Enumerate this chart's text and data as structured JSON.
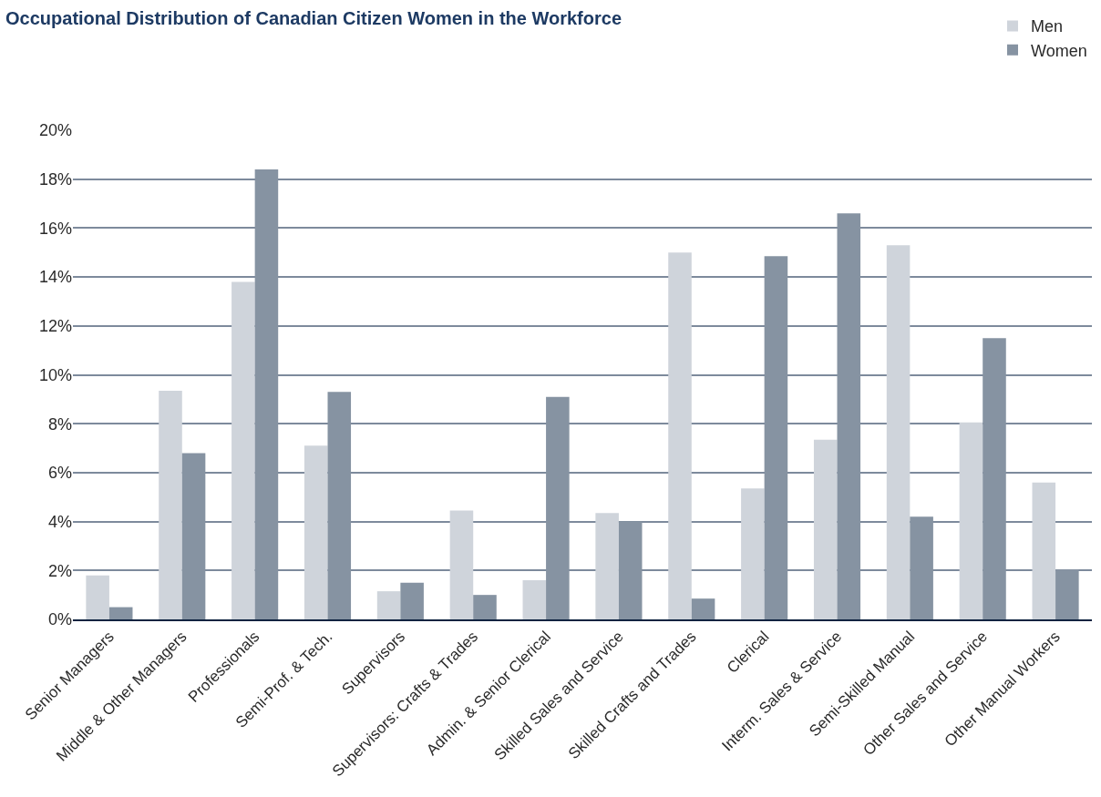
{
  "chart_data": {
    "type": "bar",
    "title": "Occupational Distribution of Canadian Citizen Women in the Workforce",
    "categories": [
      "Senior Managers",
      "Middle & Other Managers",
      "Professionals",
      "Semi-Prof. & Tech.",
      "Supervisors",
      "Supervisors: Crafts & Trades",
      "Admin. & Senior Clerical",
      "Skilled Sales and Service",
      "Skilled Crafts and Trades",
      "Clerical",
      "Interm. Sales & Service",
      "Semi-Skilled Manual",
      "Other Sales and Service",
      "Other Manual Workers"
    ],
    "series": [
      {
        "name": "Men",
        "color": "#cfd4db",
        "values": [
          1.8,
          9.35,
          13.8,
          7.1,
          1.15,
          4.45,
          1.6,
          4.35,
          15.0,
          5.35,
          7.35,
          15.3,
          8.05,
          5.6
        ]
      },
      {
        "name": "Women",
        "color": "#8693a2",
        "values": [
          0.5,
          6.8,
          18.4,
          9.3,
          1.5,
          1.0,
          9.1,
          4.0,
          0.85,
          14.85,
          16.6,
          4.2,
          11.5,
          2.05
        ]
      }
    ],
    "ylim": [
      0,
      20
    ],
    "yticks": [
      {
        "value": 0,
        "label": "0%"
      },
      {
        "value": 2,
        "label": "2%"
      },
      {
        "value": 4,
        "label": "4%"
      },
      {
        "value": 6,
        "label": "6%"
      },
      {
        "value": 8,
        "label": "8%"
      },
      {
        "value": 10,
        "label": "10%"
      },
      {
        "value": 12,
        "label": "12%"
      },
      {
        "value": 14,
        "label": "14%"
      },
      {
        "value": 16,
        "label": "16%"
      },
      {
        "value": 18,
        "label": "18%"
      },
      {
        "value": 20,
        "label": "20%"
      }
    ],
    "grid": "y",
    "legend": "top right"
  }
}
